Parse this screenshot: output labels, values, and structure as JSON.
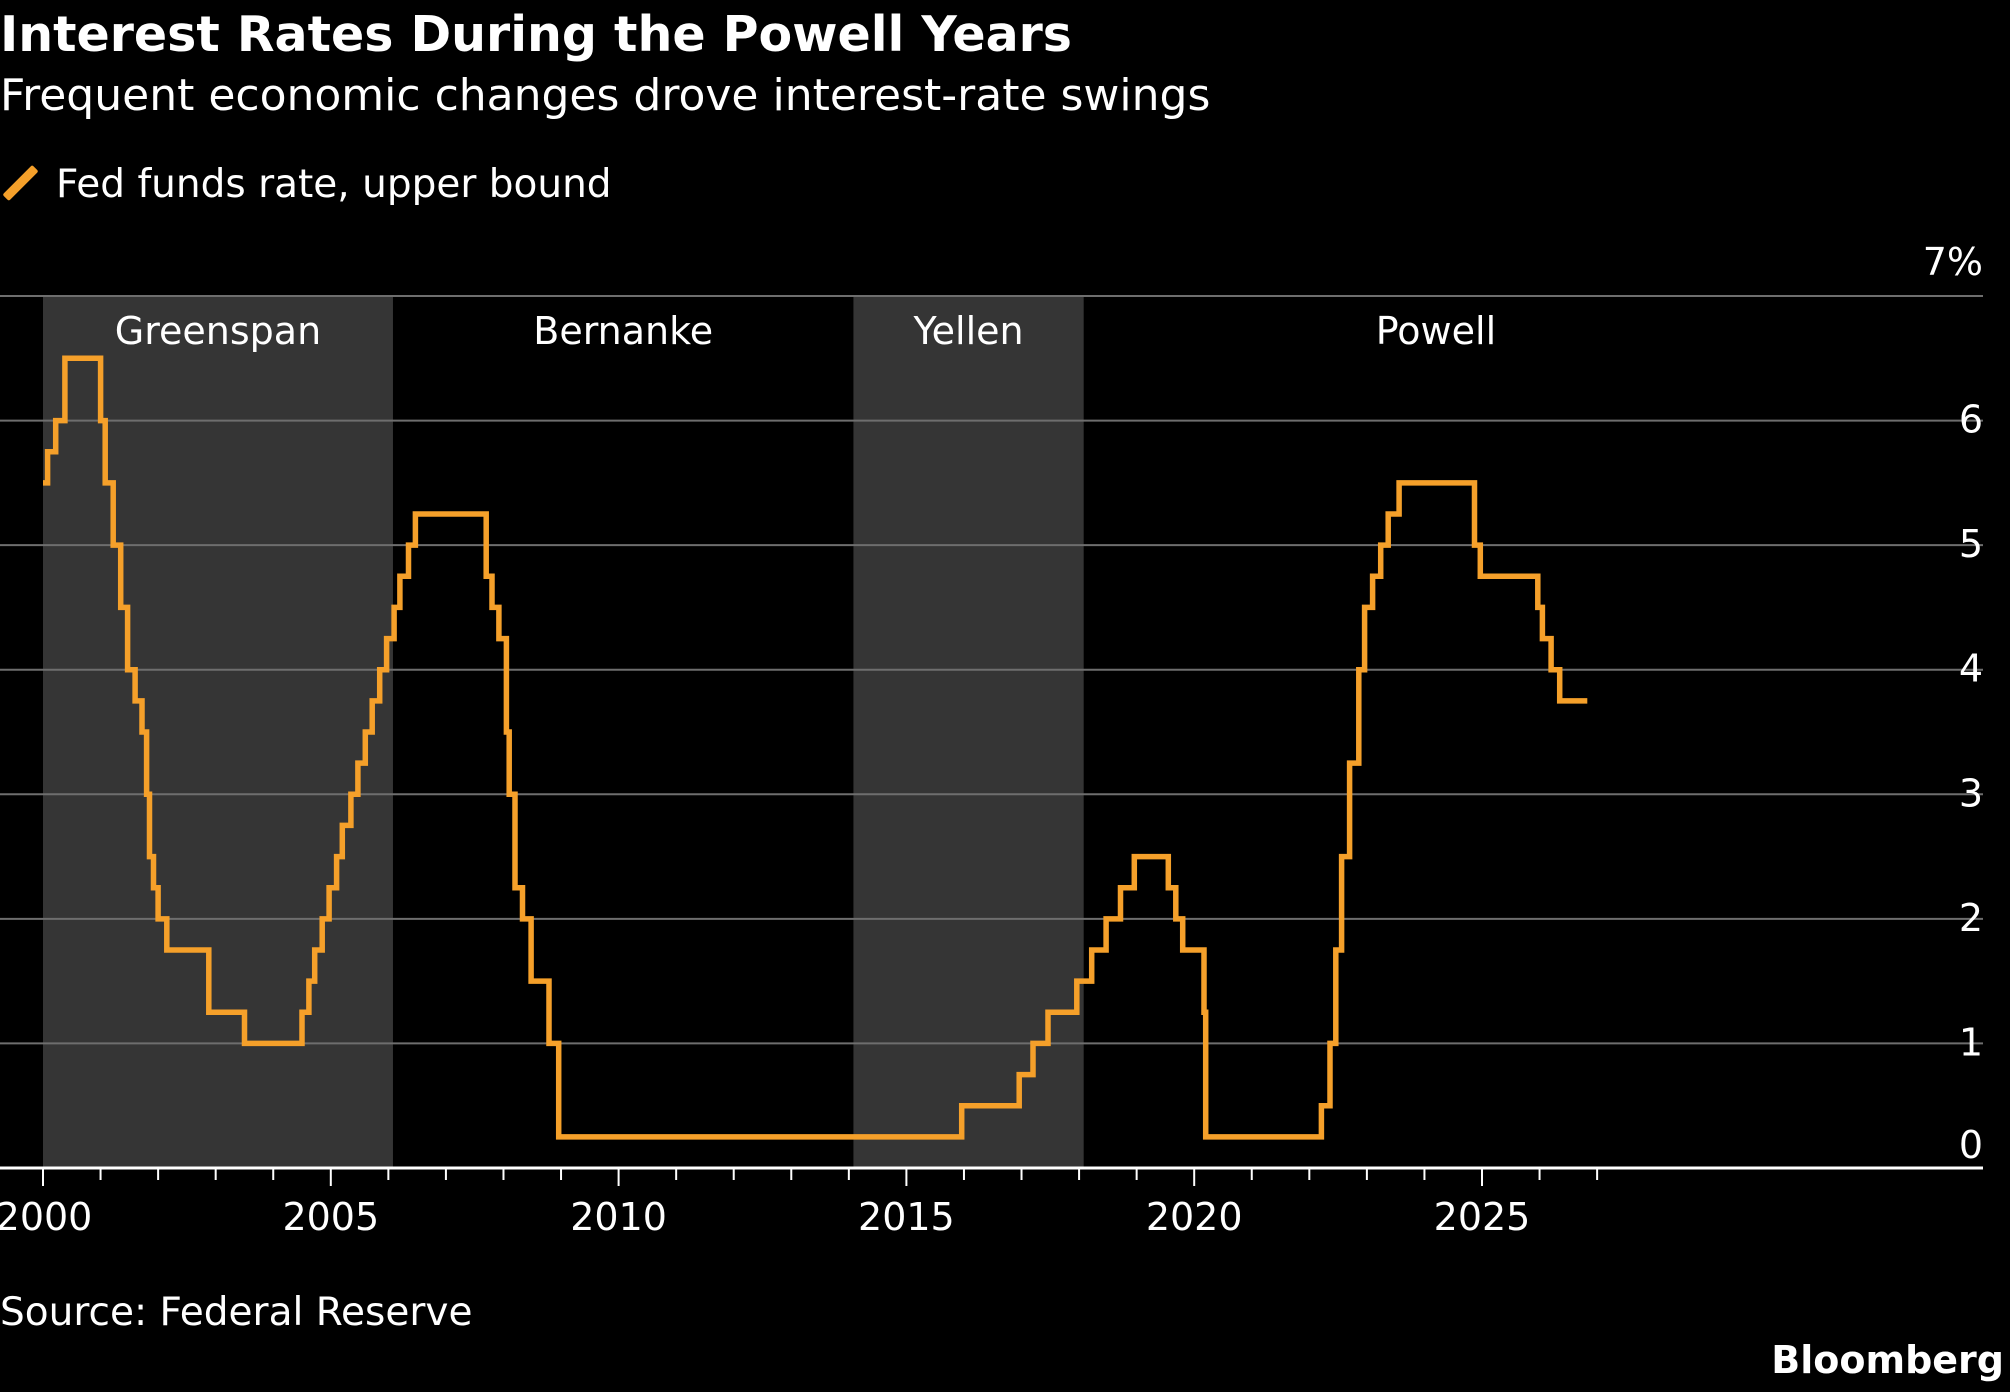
{
  "header": {
    "title": "Interest Rates During the Powell Years",
    "subtitle": "Frequent economic changes drove interest-rate swings"
  },
  "legend": {
    "label": "Fed funds rate, upper bound"
  },
  "footer": {
    "source": "Source: Federal Reserve",
    "brand": "Bloomberg"
  },
  "colors": {
    "line": "#f5a02a",
    "shade": "#353535",
    "grid": "#6e6e6e",
    "background": "#000000"
  },
  "chart_data": {
    "type": "line",
    "title": "Interest Rates During the Powell Years",
    "subtitle": "Frequent economic changes drove interest-rate swings",
    "xlabel": "",
    "ylabel": "",
    "xlim": [
      2000,
      2027.9
    ],
    "ylim": [
      0,
      7
    ],
    "y_unit": "%",
    "x_ticks": [
      "2000",
      "2005",
      "2010",
      "2015",
      "2020",
      "2025"
    ],
    "y_ticks": [
      "0",
      "1",
      "2",
      "3",
      "4",
      "5",
      "6",
      "7%"
    ],
    "grid": true,
    "legend_position": "top-left",
    "periods": [
      {
        "name": "Greenspan",
        "start": 2000.0,
        "end": 2006.08,
        "shaded": true
      },
      {
        "name": "Bernanke",
        "start": 2006.08,
        "end": 2014.08,
        "shaded": false
      },
      {
        "name": "Yellen",
        "start": 2014.08,
        "end": 2018.08,
        "shaded": true
      },
      {
        "name": "Powell",
        "start": 2018.08,
        "end": 2027.9,
        "shaded": false
      }
    ],
    "series": [
      {
        "name": "Fed funds rate, upper bound",
        "step": true,
        "x": [
          2000.0,
          2000.08,
          2000.22,
          2000.38,
          2001.0,
          2001.08,
          2001.22,
          2001.35,
          2001.47,
          2001.6,
          2001.72,
          2001.8,
          2001.85,
          2001.92,
          2002.0,
          2002.15,
          2002.88,
          2003.5,
          2004.5,
          2004.62,
          2004.72,
          2004.85,
          2004.97,
          2005.1,
          2005.2,
          2005.35,
          2005.47,
          2005.6,
          2005.72,
          2005.85,
          2005.97,
          2006.1,
          2006.2,
          2006.35,
          2006.47,
          2006.62,
          2007.7,
          2007.8,
          2007.92,
          2008.05,
          2008.1,
          2008.2,
          2008.33,
          2008.48,
          2008.79,
          2008.85,
          2008.96,
          2015.96,
          2016.96,
          2017.2,
          2017.46,
          2017.96,
          2018.22,
          2018.47,
          2018.72,
          2018.96,
          2019.55,
          2019.68,
          2019.8,
          2020.17,
          2020.2,
          2022.21,
          2022.36,
          2022.46,
          2022.56,
          2022.7,
          2022.86,
          2022.96,
          2023.1,
          2023.24,
          2023.37,
          2023.56,
          2024.72,
          2024.87,
          2024.97,
          2025.97,
          2026.05,
          2026.2,
          2026.35
        ],
        "values": [
          5.5,
          5.75,
          6.0,
          6.5,
          6.0,
          5.5,
          5.0,
          4.5,
          4.0,
          3.75,
          3.5,
          3.0,
          2.5,
          2.25,
          2.0,
          1.75,
          1.25,
          1.0,
          1.25,
          1.5,
          1.75,
          2.0,
          2.25,
          2.5,
          2.75,
          3.0,
          3.25,
          3.5,
          3.75,
          4.0,
          4.25,
          4.5,
          4.75,
          5.0,
          5.25,
          5.25,
          4.75,
          4.5,
          4.25,
          3.5,
          3.0,
          2.25,
          2.0,
          1.5,
          1.0,
          1.0,
          0.25,
          0.5,
          0.75,
          1.0,
          1.25,
          1.5,
          1.75,
          2.0,
          2.25,
          2.5,
          2.25,
          2.0,
          1.75,
          1.25,
          0.25,
          0.5,
          1.0,
          1.75,
          2.5,
          3.25,
          4.0,
          4.5,
          4.75,
          5.0,
          5.25,
          5.5,
          5.5,
          5.0,
          4.75,
          4.5,
          4.25,
          4.0,
          3.75
        ]
      }
    ]
  }
}
